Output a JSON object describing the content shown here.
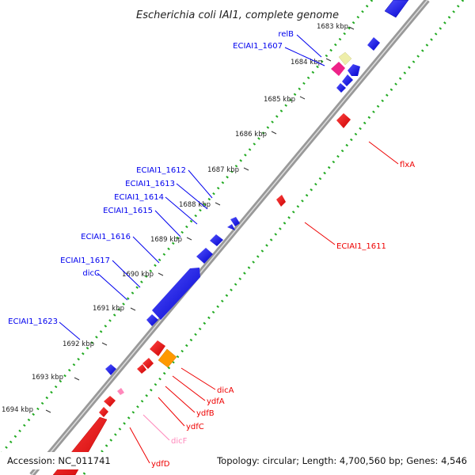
{
  "title": "Escherichia coli IAI1, complete genome",
  "footer": {
    "accession": "Accession: NC_011741",
    "topology": "Topology: circular; Length: 4,700,560 bp; Genes: 4,546"
  },
  "ticks": [
    "1683 kbp",
    "1684 kbp",
    "1685 kbp",
    "1686 kbp",
    "1687 kbp",
    "1688 kbp",
    "1689 kbp",
    "1690 kbp",
    "1691 kbp",
    "1692 kbp",
    "1693 kbp",
    "1694 kbp"
  ],
  "genes_left": [
    "relB",
    "ECIAI1_1607",
    "ECIAI1_1612",
    "ECIAI1_1613",
    "ECIAI1_1614",
    "ECIAI1_1615",
    "ECIAI1_1616",
    "ECIAI1_1617",
    "dicC",
    "ECIAI1_1623"
  ],
  "genes_right": [
    "flxA",
    "ECIAI1_1611",
    "dicA",
    "ydfA",
    "ydfB",
    "ydfC",
    "dicF",
    "ydfD"
  ],
  "colors": {
    "forward": "#0000ee",
    "reverse": "#ee0000",
    "dicF": "#ff88bb",
    "orange": "#ff9900",
    "magenta": "#ee2288",
    "pale_yellow": "#eeeeaa",
    "backbone": "#888888",
    "dots": "#22aa22"
  }
}
